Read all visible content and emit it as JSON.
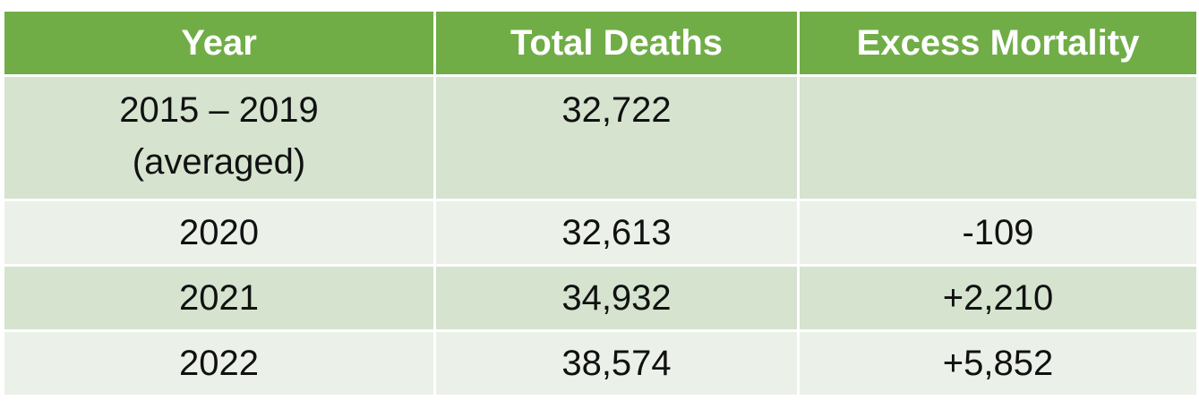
{
  "table": {
    "headers": [
      "Year",
      "Total Deaths",
      "Excess Mortality"
    ],
    "rows": [
      {
        "year_line1": "2015 – 2019",
        "year_line2": "(averaged)",
        "total": "32,722",
        "excess": ""
      },
      {
        "year": "2020",
        "total": "32,613",
        "excess": "-109"
      },
      {
        "year": "2021",
        "total": "34,932",
        "excess": "+2,210"
      },
      {
        "year": "2022",
        "total": "38,574",
        "excess": "+5,852"
      }
    ]
  },
  "colors": {
    "header_bg": "#70ad47",
    "row_band_dark": "#d5e3cf",
    "row_band_light": "#ebf1e8",
    "header_text": "#ffffff"
  }
}
